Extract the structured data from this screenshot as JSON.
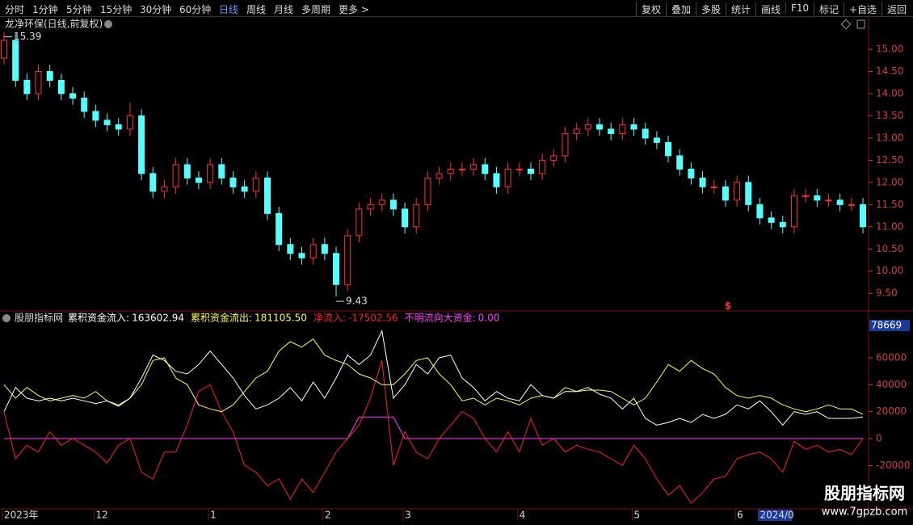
{
  "toolbar": {
    "left": [
      "分时",
      "1分钟",
      "5分钟",
      "15分钟",
      "30分钟",
      "60分钟",
      "日线",
      "周线",
      "月线",
      "多周期",
      "更多 >"
    ],
    "active": "日线",
    "right": [
      "复权",
      "叠加",
      "多股",
      "统计",
      "画线",
      "F10",
      "标记",
      "+自选",
      "返回"
    ]
  },
  "chart_data": [
    {
      "type": "candlestick",
      "title": "龙净环保(日线,前复权)",
      "up_color": "#ff3232",
      "down_color": "#54ffff",
      "categories": [
        "2023年",
        null,
        null,
        null,
        null,
        null,
        null,
        null,
        "12",
        null,
        null,
        null,
        null,
        null,
        null,
        null,
        null,
        null,
        "1",
        null,
        null,
        null,
        null,
        null,
        null,
        null,
        null,
        null,
        "2",
        null,
        null,
        null,
        null,
        null,
        null,
        "3",
        null,
        null,
        null,
        null,
        null,
        null,
        null,
        null,
        null,
        "4",
        null,
        null,
        null,
        null,
        null,
        null,
        null,
        null,
        null,
        "5",
        null,
        null,
        null,
        null,
        null,
        null,
        null,
        null,
        "6",
        null,
        "2024/0",
        null,
        null,
        null,
        null,
        null,
        null,
        null,
        null,
        null
      ],
      "open": [
        14.8,
        15.2,
        14.3,
        14.0,
        14.5,
        14.3,
        14.0,
        13.9,
        13.6,
        13.4,
        13.3,
        13.2,
        13.5,
        12.2,
        11.8,
        11.9,
        12.4,
        12.1,
        12.0,
        12.4,
        12.1,
        11.9,
        11.8,
        12.1,
        11.3,
        10.6,
        10.4,
        10.3,
        10.6,
        10.4,
        9.7,
        10.8,
        11.4,
        11.5,
        11.6,
        11.4,
        11.0,
        11.5,
        12.1,
        12.2,
        12.3,
        12.3,
        12.4,
        12.2,
        11.9,
        12.3,
        12.3,
        12.2,
        12.5,
        12.6,
        13.1,
        13.2,
        13.3,
        13.2,
        13.1,
        13.3,
        13.2,
        13.0,
        12.9,
        12.6,
        12.3,
        12.1,
        11.9,
        11.9,
        11.6,
        12.0,
        11.5,
        11.2,
        11.1,
        11.0,
        11.7,
        11.7,
        11.6,
        11.6,
        11.5,
        11.5
      ],
      "high": [
        15.39,
        15.35,
        14.45,
        14.65,
        14.65,
        14.45,
        14.15,
        14.05,
        13.75,
        13.55,
        13.45,
        13.8,
        13.65,
        12.35,
        12.05,
        12.55,
        12.55,
        12.25,
        12.55,
        12.55,
        12.25,
        12.05,
        12.25,
        12.25,
        11.45,
        10.75,
        10.55,
        10.75,
        10.75,
        10.55,
        10.95,
        11.55,
        11.65,
        11.75,
        11.75,
        11.55,
        11.65,
        12.25,
        12.35,
        12.45,
        12.45,
        12.55,
        12.55,
        12.35,
        12.45,
        12.45,
        12.45,
        12.65,
        12.75,
        13.25,
        13.35,
        13.45,
        13.45,
        13.35,
        13.45,
        13.45,
        13.35,
        13.15,
        13.05,
        12.75,
        12.45,
        12.25,
        12.05,
        12.05,
        12.15,
        12.15,
        11.65,
        11.35,
        11.25,
        11.85,
        11.85,
        11.85,
        11.75,
        11.75,
        11.65,
        11.65
      ],
      "low": [
        14.65,
        14.15,
        13.85,
        13.85,
        14.15,
        13.85,
        13.75,
        13.45,
        13.25,
        13.15,
        13.05,
        13.05,
        12.05,
        11.65,
        11.65,
        11.75,
        11.95,
        11.85,
        11.85,
        11.95,
        11.75,
        11.65,
        11.65,
        11.15,
        10.45,
        10.25,
        10.15,
        10.15,
        10.25,
        9.43,
        9.55,
        10.65,
        11.25,
        11.35,
        11.25,
        10.85,
        10.85,
        11.35,
        11.95,
        12.05,
        12.15,
        12.15,
        12.05,
        11.75,
        11.75,
        12.15,
        12.05,
        12.05,
        12.35,
        12.45,
        12.95,
        13.05,
        13.05,
        12.95,
        12.95,
        13.05,
        12.85,
        12.75,
        12.45,
        12.15,
        11.95,
        11.75,
        11.75,
        11.45,
        11.45,
        11.35,
        11.05,
        10.95,
        10.85,
        10.85,
        11.55,
        11.45,
        11.45,
        11.35,
        11.35,
        10.85
      ],
      "close": [
        15.2,
        14.3,
        14.0,
        14.5,
        14.3,
        14.0,
        13.9,
        13.6,
        13.4,
        13.3,
        13.2,
        13.5,
        12.2,
        11.8,
        11.9,
        12.4,
        12.1,
        12.0,
        12.4,
        12.1,
        11.9,
        11.8,
        12.1,
        11.3,
        10.6,
        10.4,
        10.3,
        10.6,
        10.4,
        9.7,
        10.8,
        11.4,
        11.5,
        11.6,
        11.4,
        11.0,
        11.5,
        12.1,
        12.2,
        12.3,
        12.3,
        12.4,
        12.2,
        11.9,
        12.3,
        12.3,
        12.2,
        12.5,
        12.6,
        13.1,
        13.2,
        13.3,
        13.2,
        13.1,
        13.3,
        13.2,
        13.0,
        12.9,
        12.6,
        12.3,
        12.1,
        11.9,
        11.9,
        11.6,
        12.0,
        11.5,
        11.2,
        11.1,
        11.0,
        11.7,
        11.7,
        11.6,
        11.6,
        11.5,
        11.5,
        11.0
      ],
      "ylim": [
        9.14,
        15.71
      ],
      "yticks": [
        {
          "value": 9.5,
          "label": "9.50"
        },
        {
          "value": 10,
          "label": "10.00"
        },
        {
          "value": 10.5,
          "label": "10.50"
        },
        {
          "value": 11,
          "label": "11.00"
        },
        {
          "value": 11.5,
          "label": "11.50"
        },
        {
          "value": 12,
          "label": "12.00"
        },
        {
          "value": 12.5,
          "label": "12.50"
        },
        {
          "value": 13,
          "label": "13.00"
        },
        {
          "value": 13.5,
          "label": "13.50"
        },
        {
          "value": 14,
          "label": "14.00"
        },
        {
          "value": 14.5,
          "label": "14.50"
        },
        {
          "value": 15,
          "label": "15.00"
        }
      ],
      "signal_marker": "$"
    },
    {
      "type": "line",
      "title": "股朋指标网",
      "separator": ":",
      "series": [
        {
          "name": "累积资金流入",
          "color": "#ffffff",
          "readout": "163602.94",
          "values": [
            20000,
            38000,
            30000,
            28000,
            30000,
            28000,
            30000,
            28000,
            26000,
            28000,
            24000,
            30000,
            45000,
            62000,
            58000,
            50000,
            48000,
            55000,
            65000,
            55000,
            45000,
            32000,
            22000,
            25000,
            30000,
            38000,
            28000,
            42000,
            30000,
            45000,
            62000,
            55000,
            62000,
            80000,
            30000,
            40000,
            55000,
            48000,
            60000,
            62000,
            45000,
            38000,
            28000,
            35000,
            30000,
            28000,
            40000,
            32000,
            30000,
            35000,
            35000,
            38000,
            33000,
            30000,
            22000,
            30000,
            15000,
            10000,
            12000,
            15000,
            12000,
            18000,
            15000,
            18000,
            25000,
            22000,
            28000,
            20000,
            10000,
            20000,
            18000,
            20000,
            15000,
            15000,
            15000,
            16000
          ]
        },
        {
          "name": "累积资金流出",
          "color": "#ffff40",
          "readout": "181105.50",
          "values": [
            40000,
            30000,
            38000,
            32000,
            28000,
            30000,
            32000,
            30000,
            35000,
            28000,
            25000,
            30000,
            40000,
            58000,
            60000,
            45000,
            40000,
            25000,
            22000,
            20000,
            25000,
            35000,
            45000,
            50000,
            65000,
            72000,
            68000,
            74000,
            62000,
            58000,
            55000,
            48000,
            45000,
            40000,
            40000,
            48000,
            58000,
            60000,
            48000,
            40000,
            28000,
            30000,
            25000,
            30000,
            28000,
            25000,
            30000,
            32000,
            30000,
            38000,
            35000,
            36000,
            36000,
            35000,
            30000,
            25000,
            30000,
            42000,
            55000,
            50000,
            58000,
            52000,
            48000,
            38000,
            32000,
            30000,
            32000,
            30000,
            25000,
            22000,
            20000,
            22000,
            25000,
            22000,
            22000,
            18000
          ]
        },
        {
          "name": "净流入",
          "color": "#ff2020",
          "readout": "-17502.56",
          "values": [
            20000,
            -15000,
            -5000,
            -10000,
            5000,
            -5000,
            0,
            -5000,
            -10000,
            -18000,
            -5000,
            0,
            -25000,
            -30000,
            -10000,
            -10000,
            10000,
            35000,
            40000,
            20000,
            5000,
            -20000,
            -25000,
            -35000,
            -30000,
            -45000,
            -30000,
            -40000,
            -25000,
            -10000,
            0,
            10000,
            30000,
            58000,
            -20000,
            5000,
            -10000,
            -15000,
            0,
            10000,
            20000,
            15000,
            0,
            -10000,
            5000,
            -10000,
            15000,
            -5000,
            0,
            -10000,
            -5000,
            -8000,
            -10000,
            -15000,
            -20000,
            -5000,
            -15000,
            -30000,
            -42000,
            -35000,
            -48000,
            -40000,
            -30000,
            -28000,
            -15000,
            -12000,
            -10000,
            -15000,
            -25000,
            -2000,
            -8000,
            -5000,
            -10000,
            -8000,
            -12000,
            0
          ]
        },
        {
          "name": "不明流向大资金",
          "color": "#ff40ff",
          "readout": "0.00",
          "values": [
            0,
            0,
            0,
            0,
            0,
            0,
            0,
            0,
            0,
            0,
            0,
            0,
            0,
            0,
            0,
            0,
            0,
            0,
            0,
            0,
            0,
            0,
            0,
            0,
            0,
            0,
            0,
            0,
            0,
            0,
            0,
            16000,
            16000,
            16000,
            16000,
            0,
            0,
            0,
            0,
            0,
            0,
            0,
            0,
            0,
            0,
            0,
            0,
            0,
            0,
            0,
            0,
            0,
            0,
            0,
            0,
            0,
            0,
            0,
            0,
            0,
            0,
            0,
            0,
            0,
            0,
            0,
            0,
            0,
            0,
            0,
            0,
            0,
            0,
            0,
            0,
            0
          ]
        }
      ],
      "ylim": [
        -51000,
        84000
      ],
      "yticks": [
        -20000,
        0,
        20000,
        40000,
        60000
      ],
      "cursor_value": 78669
    }
  ],
  "watermark": {
    "title": "股朋指标网",
    "url": "www.7gpzb.com"
  }
}
